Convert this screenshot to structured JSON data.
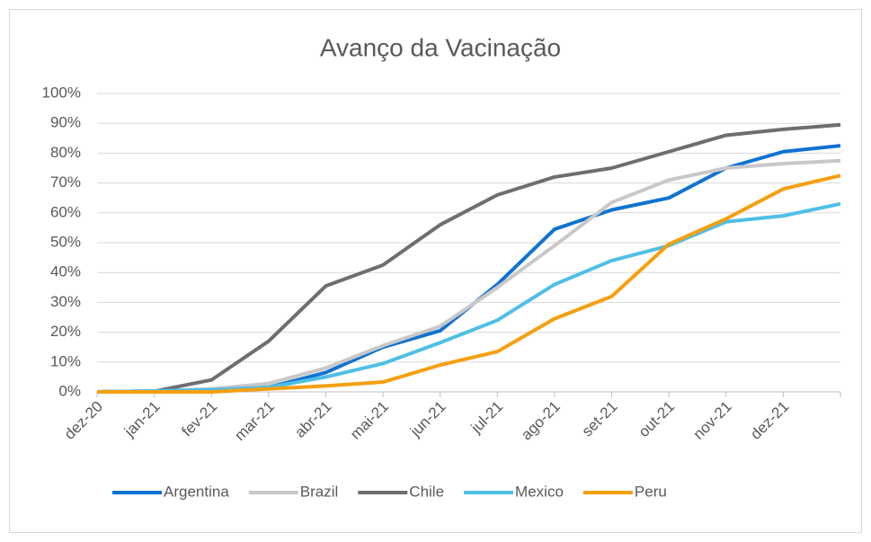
{
  "chart_data": {
    "type": "line",
    "title": "Avanço da Vacinação",
    "categories": [
      "dez-20",
      "jan-21",
      "fev-21",
      "mar-21",
      "abr-21",
      "mai-21",
      "jun-21",
      "jul-21",
      "ago-21",
      "set-21",
      "out-21",
      "nov-21",
      "dez-21",
      null
    ],
    "series": [
      {
        "name": "Argentina",
        "color": "#0f73d1",
        "values": [
          0,
          0.3,
          0.8,
          1.5,
          6.5,
          15,
          20.5,
          36,
          54.5,
          61,
          65,
          75,
          80.5,
          82.5
        ]
      },
      {
        "name": "Brazil",
        "color": "#c8c8c8",
        "values": [
          0,
          0.3,
          1,
          2.8,
          8,
          15.5,
          22,
          35,
          49,
          63.5,
          71,
          75,
          76.5,
          77.5
        ]
      },
      {
        "name": "Chile",
        "color": "#6d6e70",
        "values": [
          0,
          0.2,
          4,
          17,
          35.5,
          42.5,
          56,
          66,
          72,
          75,
          80.5,
          86,
          88,
          89.5
        ]
      },
      {
        "name": "Mexico",
        "color": "#4fbfe6",
        "values": [
          0,
          0.3,
          0.7,
          1.5,
          5,
          9.5,
          16.5,
          24,
          36,
          44,
          49,
          57,
          59,
          63
        ]
      },
      {
        "name": "Peru",
        "color": "#f59f0f",
        "values": [
          0,
          0,
          0,
          1,
          2,
          3.3,
          9,
          13.5,
          24.5,
          32,
          49.5,
          58,
          68,
          72.5
        ]
      }
    ],
    "ylim": [
      0,
      100
    ],
    "yticks": [
      {
        "value": 0,
        "label": "0%"
      },
      {
        "value": 10,
        "label": "10%"
      },
      {
        "value": 20,
        "label": "20%"
      },
      {
        "value": 30,
        "label": "30%"
      },
      {
        "value": 40,
        "label": "40%"
      },
      {
        "value": 50,
        "label": "50%"
      },
      {
        "value": 60,
        "label": "60%"
      },
      {
        "value": 70,
        "label": "70%"
      },
      {
        "value": 80,
        "label": "80%"
      },
      {
        "value": 90,
        "label": "90%"
      },
      {
        "value": 100,
        "label": "100%"
      }
    ],
    "grid": true,
    "legend": "bottom"
  }
}
